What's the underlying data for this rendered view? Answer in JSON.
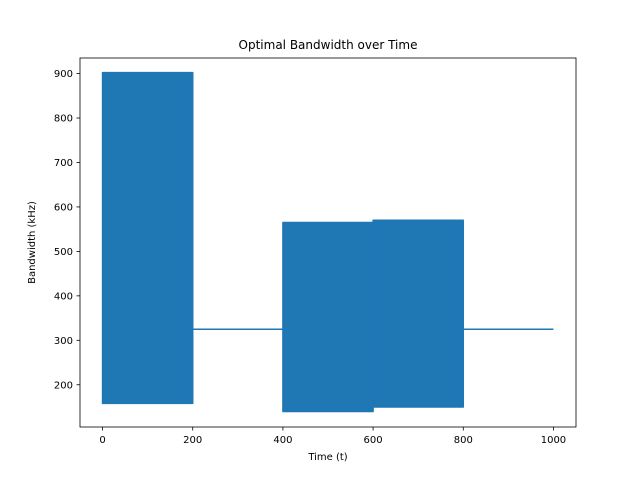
{
  "chart_data": {
    "type": "line",
    "title": "Optimal Bandwidth over Time",
    "xlabel": "Time (t)",
    "ylabel": "Bandwidth (kHz)",
    "xlim": [
      -50,
      1050
    ],
    "ylim": [
      105,
      935
    ],
    "xticks": [
      0,
      200,
      400,
      600,
      800,
      1000
    ],
    "yticks": [
      200,
      300,
      400,
      500,
      600,
      700,
      800,
      900
    ],
    "grid": false,
    "color": "#1f77b4",
    "series": [
      {
        "segments": [
          {
            "type": "oscillating_band",
            "x_start": 0,
            "x_end": 200,
            "y_low": 158,
            "y_high": 902
          },
          {
            "type": "constant",
            "x_start": 200,
            "x_end": 400,
            "y": 325
          },
          {
            "type": "oscillating_band",
            "x_start": 400,
            "x_end": 600,
            "y_low": 140,
            "y_high": 565
          },
          {
            "type": "oscillating_band",
            "x_start": 600,
            "x_end": 800,
            "y_low": 150,
            "y_high": 570
          },
          {
            "type": "constant",
            "x_start": 800,
            "x_end": 1000,
            "y": 325
          }
        ]
      }
    ]
  }
}
